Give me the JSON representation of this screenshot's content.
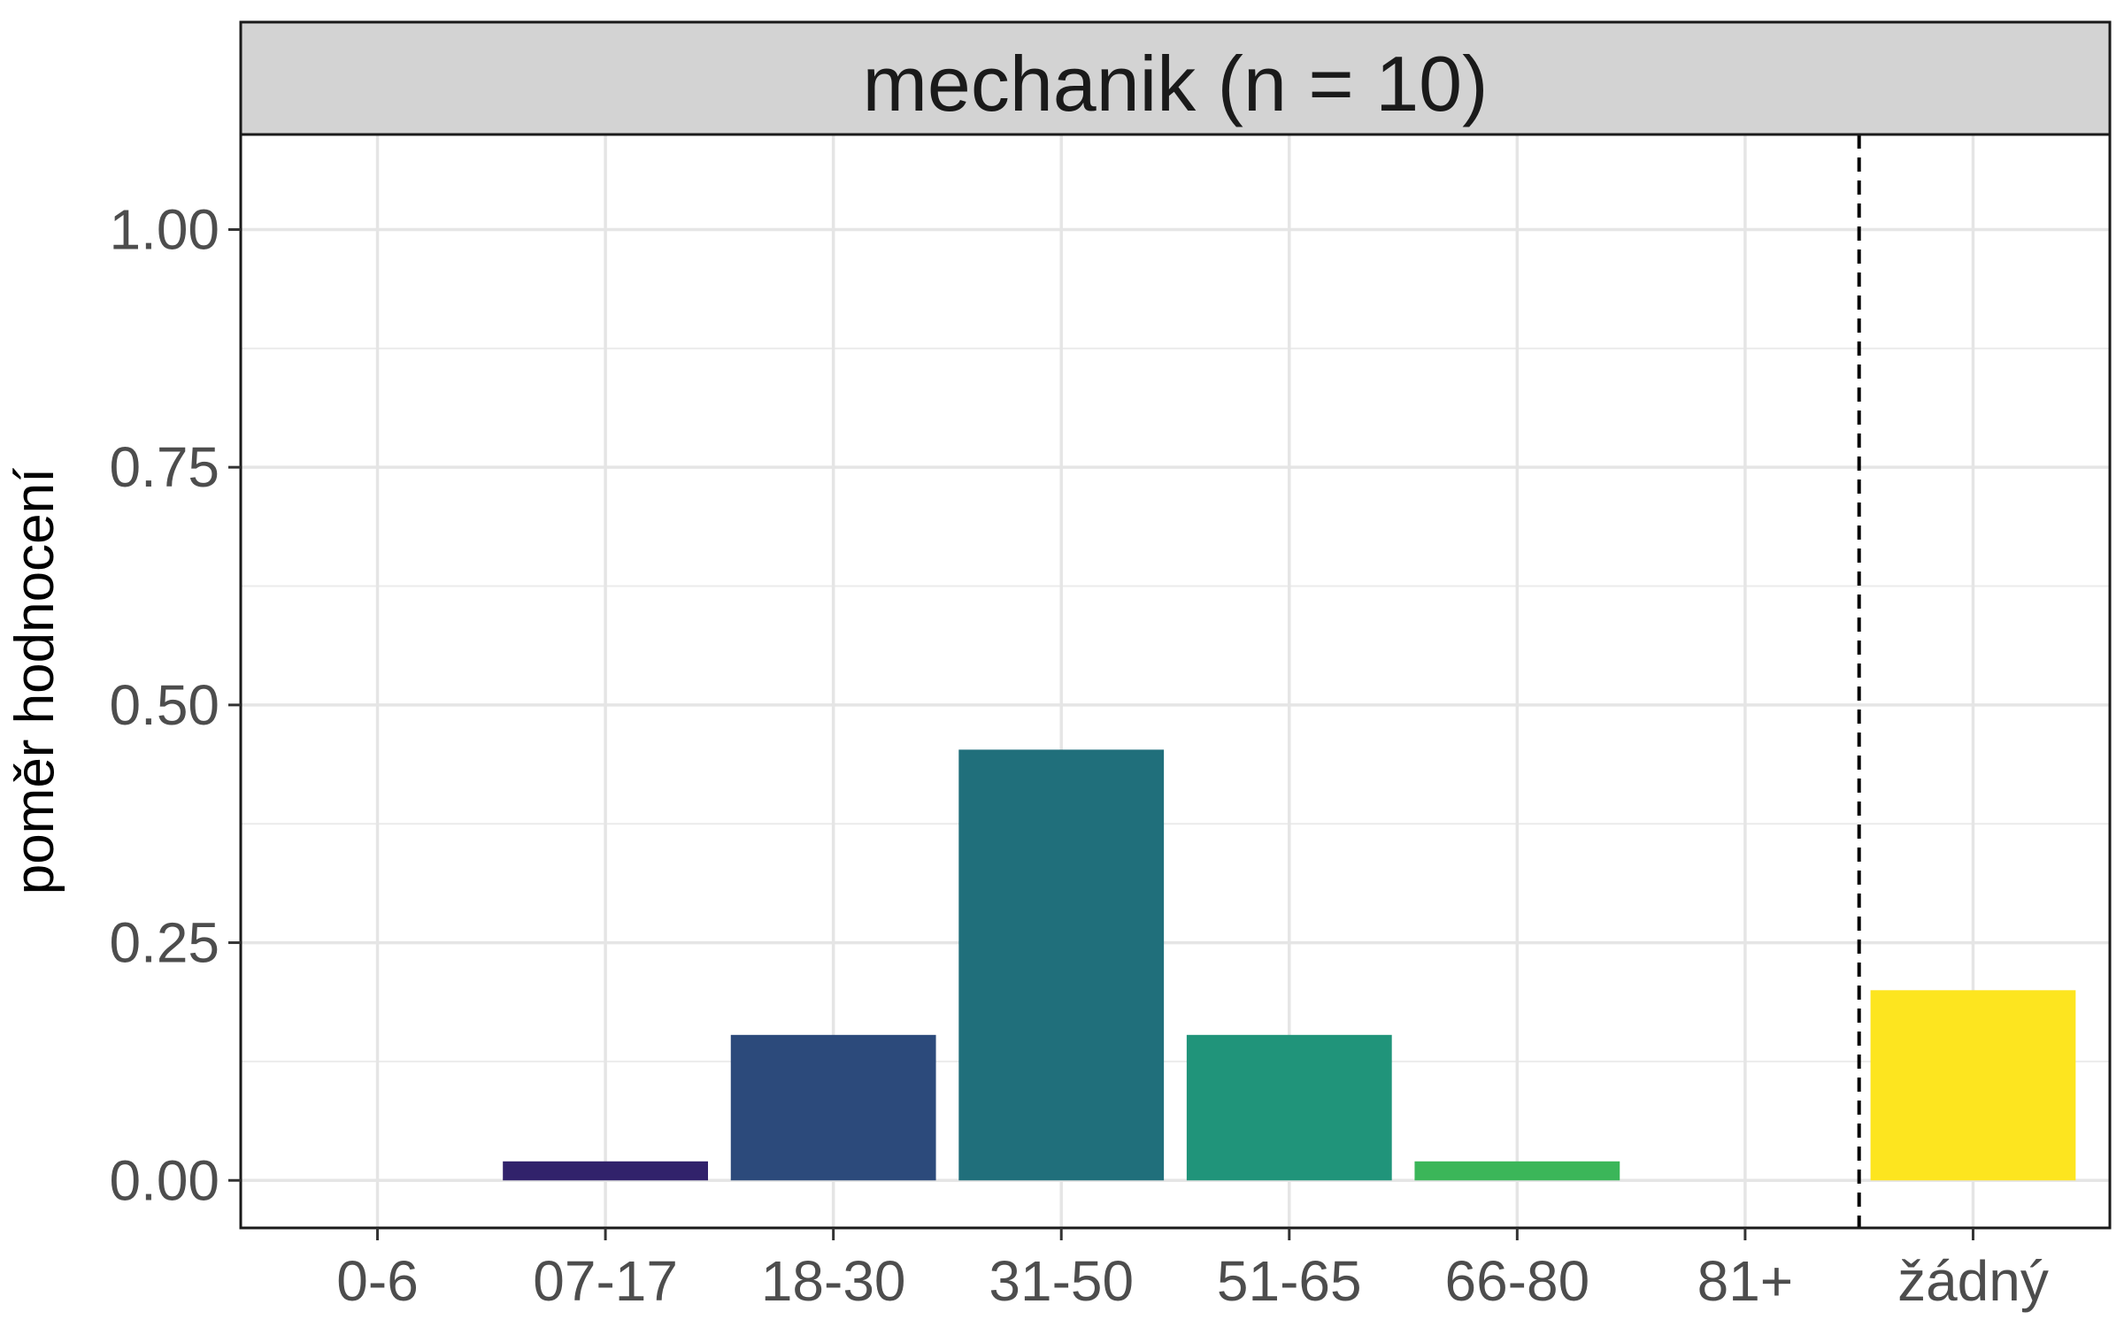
{
  "chart_data": {
    "type": "bar",
    "facet_title": "mechanik (n = 10)",
    "ylabel": "poměr hodnocení",
    "xlabel": "",
    "categories": [
      "0-6",
      "07-17",
      "18-30",
      "31-50",
      "51-65",
      "66-80",
      "81+",
      "žádný"
    ],
    "values": [
      0.0,
      0.02,
      0.153,
      0.453,
      0.153,
      0.02,
      0.0,
      0.2
    ],
    "colors": [
      "#440154",
      "#31226b",
      "#2c4a7b",
      "#206f7b",
      "#20947a",
      "#3bb659",
      "#8fd744",
      "#fde51f"
    ],
    "ylim": [
      -0.05,
      1.1
    ],
    "yticks": [
      0.0,
      0.25,
      0.5,
      0.75,
      1.0
    ],
    "ytick_labels": [
      "0.00",
      "0.25",
      "0.50",
      "0.75",
      "1.00"
    ],
    "separator_after_category": "81+",
    "grid": true,
    "legend": "none"
  }
}
